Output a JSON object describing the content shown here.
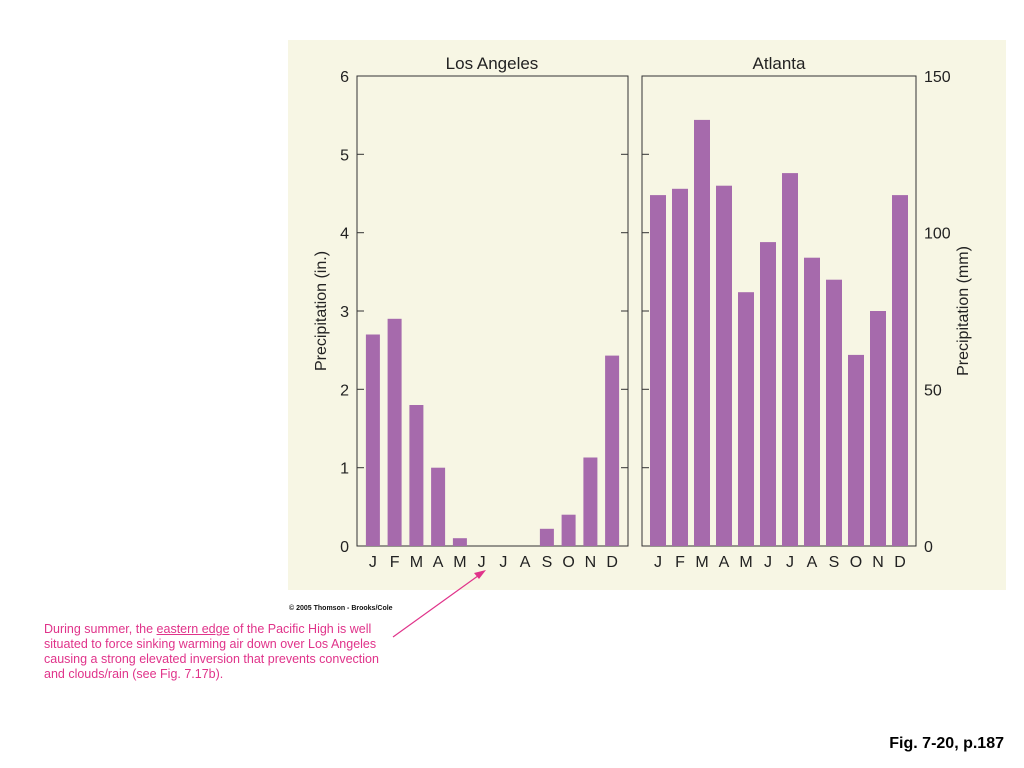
{
  "chart_data": [
    {
      "type": "bar",
      "title": "Los Angeles",
      "ylabel": "Precipitation (in.)",
      "ylim": [
        0,
        6
      ],
      "yticks": [
        "0",
        "1",
        "2",
        "3",
        "4",
        "5",
        "6"
      ],
      "categories": [
        "J",
        "F",
        "M",
        "A",
        "M",
        "J",
        "J",
        "A",
        "S",
        "O",
        "N",
        "D"
      ],
      "values": [
        2.7,
        2.9,
        1.8,
        1.0,
        0.1,
        0.0,
        0.0,
        0.0,
        0.22,
        0.4,
        1.13,
        2.43
      ],
      "bar_color": "#a66aac",
      "grid": false
    },
    {
      "type": "bar",
      "title": "Atlanta",
      "ylabel": "Precipitation (mm)",
      "ylim": [
        0,
        150
      ],
      "yticks": [
        "0",
        "50",
        "100",
        "150"
      ],
      "categories": [
        "J",
        "F",
        "M",
        "A",
        "M",
        "J",
        "J",
        "A",
        "S",
        "O",
        "N",
        "D"
      ],
      "values": [
        112,
        114,
        136,
        115,
        81,
        97,
        119,
        92,
        85,
        61,
        75,
        112
      ],
      "bar_color": "#a66aac",
      "grid": false
    }
  ],
  "copyright": "© 2005 Thomson - Brooks/Cole",
  "note": {
    "before": "During summer, the ",
    "underlined": "eastern edge",
    "after": " of the Pacific High is well situated to force sinking warming air down over Los Angeles causing a strong elevated inversion that prevents convection and clouds/rain (see Fig. 7.17b)."
  },
  "fig_ref": "Fig. 7-20, p.187",
  "colors": {
    "background": "#f7f6e4",
    "bars": "#a66aac",
    "annotation": "#e0338a"
  }
}
